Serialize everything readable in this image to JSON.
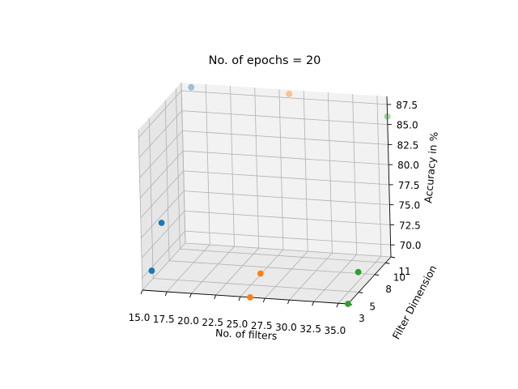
{
  "chart_data": {
    "type": "scatter",
    "projection": "3d",
    "title": "No. of epochs = 20",
    "xlabel": "No. of filters",
    "ylabel": "Filter Dimension",
    "zlabel": "Accuracy in %",
    "xlim": [
      15.0,
      36.0
    ],
    "ylim": [
      3,
      11
    ],
    "zlim": [
      68.5,
      88.5
    ],
    "grid": true,
    "x_ticks": [
      "15.0",
      "17.5",
      "20.0",
      "22.5",
      "25.0",
      "27.5",
      "30.0",
      "32.5",
      "35.0"
    ],
    "y_ticks": [
      "3",
      "5",
      "8",
      "10",
      "11"
    ],
    "z_ticks": [
      "70.0",
      "72.5",
      "75.0",
      "77.5",
      "80.0",
      "82.5",
      "85.0",
      "87.5"
    ],
    "series": [
      {
        "color": "#1f77b4",
        "points": [
          {
            "x": 16,
            "y": 3,
            "z": 71
          },
          {
            "x": 16,
            "y": 5,
            "z": 75.5
          },
          {
            "x": 16,
            "y": 11,
            "z": 88
          }
        ]
      },
      {
        "color": "#ff7f0e",
        "points": [
          {
            "x": 26,
            "y": 3,
            "z": 68.5
          },
          {
            "x": 26,
            "y": 5,
            "z": 70
          },
          {
            "x": 26,
            "y": 11,
            "z": 88
          }
        ]
      },
      {
        "color": "#2ca02c",
        "points": [
          {
            "x": 36,
            "y": 3,
            "z": 68.5
          },
          {
            "x": 36,
            "y": 5,
            "z": 71
          },
          {
            "x": 36,
            "y": 11,
            "z": 86
          }
        ]
      }
    ]
  }
}
